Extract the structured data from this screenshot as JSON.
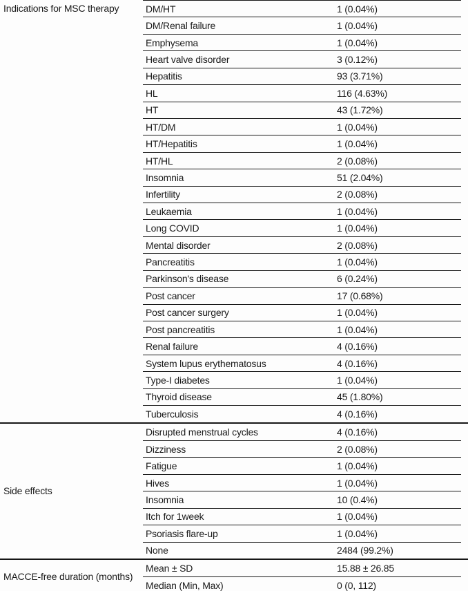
{
  "colors": {
    "text": "#1a1a1a",
    "rule_line": "#161616",
    "background": "#fdfdfd"
  },
  "table": {
    "sections": [
      {
        "label": "Indications for MSC therapy",
        "rows": [
          {
            "name": "DM/HT",
            "value": "1 (0.04%)"
          },
          {
            "name": "DM/Renal failure",
            "value": "1 (0.04%)"
          },
          {
            "name": "Emphysema",
            "value": "1 (0.04%)"
          },
          {
            "name": "Heart valve disorder",
            "value": "3 (0.12%)"
          },
          {
            "name": "Hepatitis",
            "value": "93 (3.71%)"
          },
          {
            "name": "HL",
            "value": "116 (4.63%)"
          },
          {
            "name": "HT",
            "value": "43 (1.72%)"
          },
          {
            "name": "HT/DM",
            "value": "1 (0.04%)"
          },
          {
            "name": "HT/Hepatitis",
            "value": "1 (0.04%)"
          },
          {
            "name": "HT/HL",
            "value": "2 (0.08%)"
          },
          {
            "name": "Insomnia",
            "value": "51 (2.04%)"
          },
          {
            "name": "Infertility",
            "value": "2 (0.08%)"
          },
          {
            "name": "Leukaemia",
            "value": "1 (0.04%)"
          },
          {
            "name": "Long COVID",
            "value": "1 (0.04%)"
          },
          {
            "name": "Mental disorder",
            "value": "2 (0.08%)"
          },
          {
            "name": "Pancreatitis",
            "value": "1 (0.04%)"
          },
          {
            "name": "Parkinson's disease",
            "value": "6 (0.24%)"
          },
          {
            "name": "Post cancer",
            "value": "17 (0.68%)"
          },
          {
            "name": "Post cancer surgery",
            "value": "1 (0.04%)"
          },
          {
            "name": "Post pancreatitis",
            "value": "1 (0.04%)"
          },
          {
            "name": "Renal failure",
            "value": "4 (0.16%)"
          },
          {
            "name": "System lupus erythematosus",
            "value": "4 (0.16%)"
          },
          {
            "name": "Type-I diabetes",
            "value": "1 (0.04%)"
          },
          {
            "name": "Thyroid disease",
            "value": "45 (1.80%)"
          },
          {
            "name": "Tuberculosis",
            "value": "4 (0.16%)"
          }
        ]
      },
      {
        "label": "Side effects",
        "rows": [
          {
            "name": "Disrupted menstrual cycles",
            "value": "4 (0.16%)"
          },
          {
            "name": "Dizziness",
            "value": "2 (0.08%)"
          },
          {
            "name": "Fatigue",
            "value": "1 (0.04%)"
          },
          {
            "name": "Hives",
            "value": "1 (0.04%)"
          },
          {
            "name": "Insomnia",
            "value": "10 (0.4%)"
          },
          {
            "name": "Itch for 1week",
            "value": "1 (0.04%)"
          },
          {
            "name": "Psoriasis flare-up",
            "value": "1 (0.04%)"
          },
          {
            "name": "None",
            "value": "2484 (99.2%)"
          }
        ]
      },
      {
        "label": "MACCE-free duration (months)",
        "rows": [
          {
            "name": "Mean ± SD",
            "value": "15.88 ± 26.85"
          },
          {
            "name": "Median (Min, Max)",
            "value": "0 (0, 112)"
          }
        ]
      }
    ]
  }
}
